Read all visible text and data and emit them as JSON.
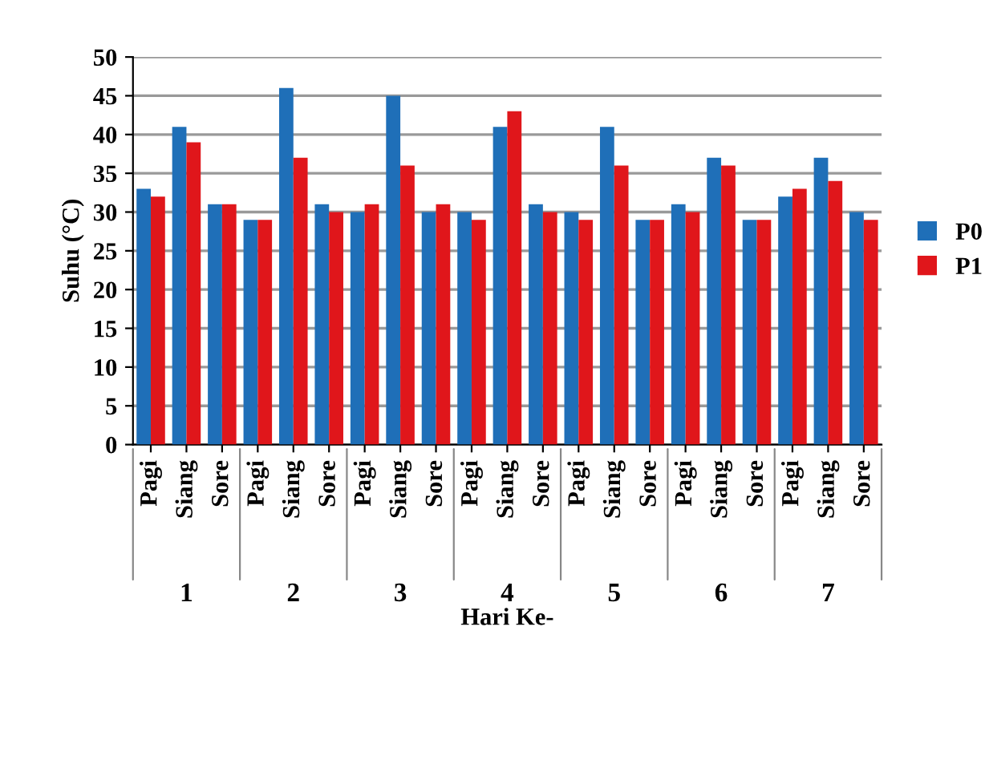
{
  "chart_data": {
    "type": "bar",
    "ylabel": "Suhu (°C)",
    "xlabel": "Hari Ke-",
    "categories": [
      "Pagi",
      "Siang",
      "Sore",
      "Pagi",
      "Siang",
      "Sore",
      "Pagi",
      "Siang",
      "Sore",
      "Pagi",
      "Siang",
      "Sore",
      "Pagi",
      "Siang",
      "Sore",
      "Pagi",
      "Siang",
      "Sore",
      "Pagi",
      "Siang",
      "Sore"
    ],
    "series": [
      {
        "name": "P0",
        "color": "#1f6fb8",
        "values": [
          33,
          41,
          31,
          29,
          46,
          31,
          30,
          45,
          30,
          30,
          41,
          31,
          30,
          41,
          29,
          31,
          37,
          29,
          32,
          37,
          30
        ]
      },
      {
        "name": "P1",
        "color": "#e0161b",
        "values": [
          32,
          39,
          31,
          29,
          37,
          30,
          31,
          36,
          31,
          29,
          43,
          30,
          29,
          36,
          29,
          30,
          36,
          29,
          33,
          34,
          29
        ]
      }
    ],
    "annotations": [
      "1",
      "2",
      "3",
      "4",
      "5",
      "6",
      "7"
    ],
    "ylim": [
      0,
      50
    ],
    "yticks": [
      0,
      5,
      10,
      15,
      20,
      25,
      30,
      35,
      40,
      45,
      50
    ],
    "grid": "y",
    "legend": "right"
  }
}
